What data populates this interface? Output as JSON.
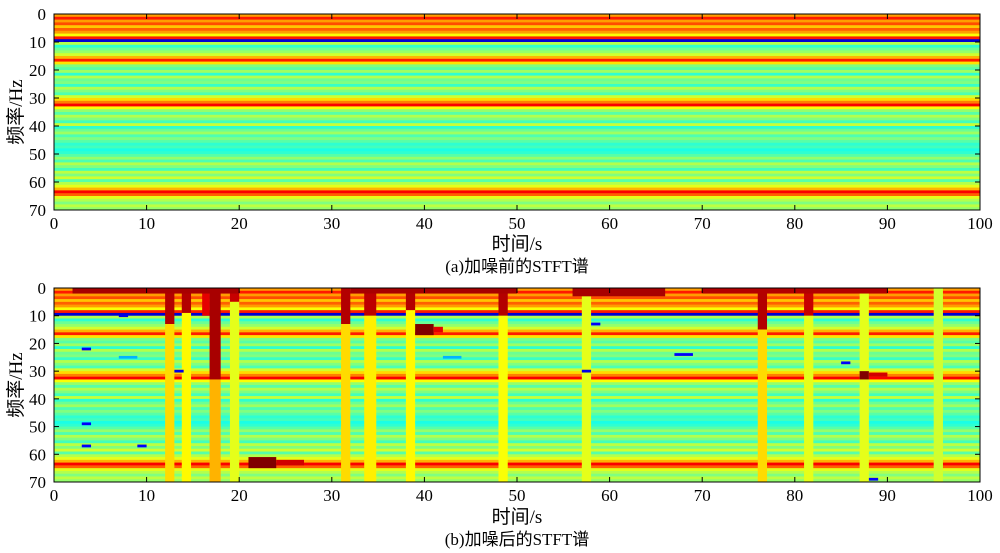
{
  "chart_data": [
    {
      "type": "heatmap",
      "caption": "(a)加噪前的STFT谱",
      "xlabel": "时间/s",
      "ylabel": "频率/Hz",
      "xlim": [
        0,
        100
      ],
      "ylim": [
        0,
        70
      ],
      "y_reversed": true,
      "xticks": [
        0,
        10,
        20,
        30,
        40,
        50,
        60,
        70,
        80,
        90,
        100
      ],
      "yticks": [
        0,
        10,
        20,
        30,
        40,
        50,
        60,
        70
      ],
      "colormap": "jet",
      "value_range": [
        0,
        1
      ],
      "grid": false,
      "row_profile": [
        {
          "f0": 0,
          "f1": 1,
          "v": 0.72
        },
        {
          "f0": 1,
          "f1": 2,
          "v": 0.85
        },
        {
          "f0": 2,
          "f1": 3,
          "v": 0.72
        },
        {
          "f0": 3,
          "f1": 4,
          "v": 0.8
        },
        {
          "f0": 4,
          "f1": 5,
          "v": 0.68
        },
        {
          "f0": 5,
          "f1": 6,
          "v": 0.78
        },
        {
          "f0": 6,
          "f1": 7,
          "v": 0.72
        },
        {
          "f0": 7,
          "f1": 8,
          "v": 0.62
        },
        {
          "f0": 8,
          "f1": 9,
          "v": 0.85
        },
        {
          "f0": 9,
          "f1": 10,
          "v": 0.08
        },
        {
          "f0": 10,
          "f1": 11,
          "v": 0.55
        },
        {
          "f0": 11,
          "f1": 12,
          "v": 0.42
        },
        {
          "f0": 12,
          "f1": 13,
          "v": 0.48
        },
        {
          "f0": 13,
          "f1": 14,
          "v": 0.52
        },
        {
          "f0": 14,
          "f1": 15,
          "v": 0.58
        },
        {
          "f0": 15,
          "f1": 16,
          "v": 0.7
        },
        {
          "f0": 16,
          "f1": 17,
          "v": 0.85
        },
        {
          "f0": 17,
          "f1": 18,
          "v": 0.65
        },
        {
          "f0": 18,
          "f1": 19,
          "v": 0.5
        },
        {
          "f0": 19,
          "f1": 20,
          "v": 0.46
        },
        {
          "f0": 20,
          "f1": 21,
          "v": 0.53
        },
        {
          "f0": 21,
          "f1": 22,
          "v": 0.42
        },
        {
          "f0": 22,
          "f1": 23,
          "v": 0.55
        },
        {
          "f0": 23,
          "f1": 24,
          "v": 0.48
        },
        {
          "f0": 24,
          "f1": 25,
          "v": 0.5
        },
        {
          "f0": 25,
          "f1": 26,
          "v": 0.43
        },
        {
          "f0": 26,
          "f1": 27,
          "v": 0.55
        },
        {
          "f0": 27,
          "f1": 28,
          "v": 0.5
        },
        {
          "f0": 28,
          "f1": 29,
          "v": 0.45
        },
        {
          "f0": 29,
          "f1": 30,
          "v": 0.58
        },
        {
          "f0": 30,
          "f1": 31,
          "v": 0.66
        },
        {
          "f0": 31,
          "f1": 32,
          "v": 0.75
        },
        {
          "f0": 32,
          "f1": 33,
          "v": 0.88
        },
        {
          "f0": 33,
          "f1": 34,
          "v": 0.62
        },
        {
          "f0": 34,
          "f1": 35,
          "v": 0.52
        },
        {
          "f0": 35,
          "f1": 36,
          "v": 0.46
        },
        {
          "f0": 36,
          "f1": 37,
          "v": 0.55
        },
        {
          "f0": 37,
          "f1": 38,
          "v": 0.5
        },
        {
          "f0": 38,
          "f1": 39,
          "v": 0.44
        },
        {
          "f0": 39,
          "f1": 40,
          "v": 0.57
        },
        {
          "f0": 40,
          "f1": 41,
          "v": 0.42
        },
        {
          "f0": 41,
          "f1": 42,
          "v": 0.48
        },
        {
          "f0": 42,
          "f1": 43,
          "v": 0.53
        },
        {
          "f0": 43,
          "f1": 44,
          "v": 0.45
        },
        {
          "f0": 44,
          "f1": 45,
          "v": 0.5
        },
        {
          "f0": 45,
          "f1": 46,
          "v": 0.46
        },
        {
          "f0": 46,
          "f1": 47,
          "v": 0.42
        },
        {
          "f0": 47,
          "f1": 48,
          "v": 0.44
        },
        {
          "f0": 48,
          "f1": 49,
          "v": 0.4
        },
        {
          "f0": 49,
          "f1": 50,
          "v": 0.42
        },
        {
          "f0": 50,
          "f1": 51,
          "v": 0.46
        },
        {
          "f0": 51,
          "f1": 52,
          "v": 0.52
        },
        {
          "f0": 52,
          "f1": 53,
          "v": 0.45
        },
        {
          "f0": 53,
          "f1": 54,
          "v": 0.55
        },
        {
          "f0": 54,
          "f1": 55,
          "v": 0.5
        },
        {
          "f0": 55,
          "f1": 56,
          "v": 0.44
        },
        {
          "f0": 56,
          "f1": 57,
          "v": 0.56
        },
        {
          "f0": 57,
          "f1": 58,
          "v": 0.5
        },
        {
          "f0": 58,
          "f1": 59,
          "v": 0.58
        },
        {
          "f0": 59,
          "f1": 60,
          "v": 0.46
        },
        {
          "f0": 60,
          "f1": 61,
          "v": 0.55
        },
        {
          "f0": 61,
          "f1": 62,
          "v": 0.6
        },
        {
          "f0": 62,
          "f1": 63,
          "v": 0.7
        },
        {
          "f0": 63,
          "f1": 64,
          "v": 0.88
        },
        {
          "f0": 64,
          "f1": 65,
          "v": 0.78
        },
        {
          "f0": 65,
          "f1": 66,
          "v": 0.6
        },
        {
          "f0": 66,
          "f1": 67,
          "v": 0.55
        },
        {
          "f0": 67,
          "f1": 68,
          "v": 0.5
        },
        {
          "f0": 68,
          "f1": 69,
          "v": 0.56
        },
        {
          "f0": 69,
          "f1": 70,
          "v": 0.52
        }
      ],
      "features": []
    },
    {
      "type": "heatmap",
      "caption": "(b)加噪后的STFT谱",
      "xlabel": "时间/s",
      "ylabel": "频率/Hz",
      "xlim": [
        0,
        100
      ],
      "ylim": [
        0,
        70
      ],
      "y_reversed": true,
      "xticks": [
        0,
        10,
        20,
        30,
        40,
        50,
        60,
        70,
        80,
        90,
        100
      ],
      "yticks": [
        0,
        10,
        20,
        30,
        40,
        50,
        60,
        70
      ],
      "colormap": "jet",
      "value_range": [
        0,
        1
      ],
      "grid": false,
      "row_profile": "same_as_panel_a",
      "features": [
        {
          "kind": "column",
          "t0": 12,
          "t1": 13,
          "f0": 0,
          "f1": 13,
          "v": 0.95
        },
        {
          "kind": "column",
          "t0": 12,
          "t1": 13,
          "f0": 13,
          "f1": 70,
          "v": 0.66
        },
        {
          "kind": "column",
          "t0": 13.8,
          "t1": 14.8,
          "f0": 0,
          "f1": 9,
          "v": 0.95
        },
        {
          "kind": "column",
          "t0": 13.8,
          "t1": 14.8,
          "f0": 9,
          "f1": 70,
          "v": 0.63
        },
        {
          "kind": "column",
          "t0": 16,
          "t1": 16.8,
          "f0": 0,
          "f1": 10,
          "v": 0.9
        },
        {
          "kind": "column",
          "t0": 16.8,
          "t1": 18,
          "f0": 0,
          "f1": 33,
          "v": 0.96
        },
        {
          "kind": "column",
          "t0": 16.8,
          "t1": 18,
          "f0": 33,
          "f1": 70,
          "v": 0.7
        },
        {
          "kind": "column",
          "t0": 19,
          "t1": 20,
          "f0": 0,
          "f1": 5,
          "v": 0.93
        },
        {
          "kind": "column",
          "t0": 19,
          "t1": 20,
          "f0": 5,
          "f1": 70,
          "v": 0.6
        },
        {
          "kind": "blob",
          "t0": 21,
          "t1": 24,
          "f0": 61,
          "f1": 65,
          "v": 1.0
        },
        {
          "kind": "blob",
          "t0": 24,
          "t1": 27,
          "f0": 62,
          "f1": 64,
          "v": 0.92
        },
        {
          "kind": "column",
          "t0": 31,
          "t1": 32,
          "f0": 0,
          "f1": 13,
          "v": 0.95
        },
        {
          "kind": "column",
          "t0": 31,
          "t1": 32,
          "f0": 13,
          "f1": 70,
          "v": 0.66
        },
        {
          "kind": "column",
          "t0": 33.5,
          "t1": 34.8,
          "f0": 0,
          "f1": 10,
          "v": 0.94
        },
        {
          "kind": "column",
          "t0": 33.5,
          "t1": 34.8,
          "f0": 10,
          "f1": 70,
          "v": 0.64
        },
        {
          "kind": "column",
          "t0": 38,
          "t1": 39,
          "f0": 0,
          "f1": 8,
          "v": 0.95
        },
        {
          "kind": "column",
          "t0": 38,
          "t1": 39,
          "f0": 8,
          "f1": 70,
          "v": 0.63
        },
        {
          "kind": "blob",
          "t0": 39,
          "t1": 41,
          "f0": 13,
          "f1": 17,
          "v": 1.0
        },
        {
          "kind": "blob",
          "t0": 41,
          "t1": 42,
          "f0": 14,
          "f1": 16,
          "v": 0.9
        },
        {
          "kind": "column",
          "t0": 48,
          "t1": 49,
          "f0": 0,
          "f1": 10,
          "v": 0.95
        },
        {
          "kind": "column",
          "t0": 48,
          "t1": 49,
          "f0": 10,
          "f1": 70,
          "v": 0.62
        },
        {
          "kind": "column",
          "t0": 57,
          "t1": 58,
          "f0": 0,
          "f1": 70,
          "v": 0.6
        },
        {
          "kind": "column",
          "t0": 76,
          "t1": 77,
          "f0": 0,
          "f1": 15,
          "v": 0.95
        },
        {
          "kind": "column",
          "t0": 76,
          "t1": 77,
          "f0": 15,
          "f1": 70,
          "v": 0.66
        },
        {
          "kind": "column",
          "t0": 81,
          "t1": 82,
          "f0": 0,
          "f1": 10,
          "v": 0.93
        },
        {
          "kind": "column",
          "t0": 81,
          "t1": 82,
          "f0": 10,
          "f1": 70,
          "v": 0.6
        },
        {
          "kind": "column",
          "t0": 87,
          "t1": 88,
          "f0": 0,
          "f1": 70,
          "v": 0.6
        },
        {
          "kind": "blob",
          "t0": 87,
          "t1": 88,
          "f0": 30,
          "f1": 33,
          "v": 1.0
        },
        {
          "kind": "blob",
          "t0": 88,
          "t1": 90,
          "f0": 30.5,
          "f1": 32,
          "v": 0.92
        },
        {
          "kind": "column",
          "t0": 95,
          "t1": 96,
          "f0": 0,
          "f1": 70,
          "v": 0.58
        },
        {
          "kind": "hbar",
          "t0": 2,
          "t1": 20,
          "f0": 0,
          "f1": 2,
          "v": 0.96
        },
        {
          "kind": "hbar",
          "t0": 32,
          "t1": 50,
          "f0": 0,
          "f1": 2,
          "v": 0.96
        },
        {
          "kind": "hbar",
          "t0": 56,
          "t1": 66,
          "f0": 0,
          "f1": 3,
          "v": 0.96
        },
        {
          "kind": "hbar",
          "t0": 70,
          "t1": 90,
          "f0": 0,
          "f1": 2,
          "v": 0.95
        },
        {
          "kind": "dash",
          "t0": 3,
          "t1": 4,
          "f0": 21.5,
          "f1": 22.5,
          "v": 0.12
        },
        {
          "kind": "dash",
          "t0": 7,
          "t1": 8,
          "f0": 9.5,
          "f1": 10.5,
          "v": 0.1
        },
        {
          "kind": "dash",
          "t0": 7,
          "t1": 9,
          "f0": 24.5,
          "f1": 25.5,
          "v": 0.3
        },
        {
          "kind": "dash",
          "t0": 3,
          "t1": 4,
          "f0": 48.5,
          "f1": 49.5,
          "v": 0.12
        },
        {
          "kind": "dash",
          "t0": 3,
          "t1": 4,
          "f0": 56.5,
          "f1": 57.5,
          "v": 0.12
        },
        {
          "kind": "dash",
          "t0": 9,
          "t1": 10,
          "f0": 56.5,
          "f1": 57.5,
          "v": 0.12
        },
        {
          "kind": "dash",
          "t0": 13,
          "t1": 14,
          "f0": 29.5,
          "f1": 30.5,
          "v": 0.1
        },
        {
          "kind": "dash",
          "t0": 58,
          "t1": 59,
          "f0": 12.5,
          "f1": 13.5,
          "v": 0.12
        },
        {
          "kind": "dash",
          "t0": 57,
          "t1": 58,
          "f0": 29.5,
          "f1": 30.5,
          "v": 0.1
        },
        {
          "kind": "dash",
          "t0": 67,
          "t1": 69,
          "f0": 23.5,
          "f1": 24.5,
          "v": 0.12
        },
        {
          "kind": "dash",
          "t0": 85,
          "t1": 86,
          "f0": 26.5,
          "f1": 27.5,
          "v": 0.12
        },
        {
          "kind": "dash",
          "t0": 42,
          "t1": 44,
          "f0": 24.5,
          "f1": 25.5,
          "v": 0.3
        },
        {
          "kind": "dash",
          "t0": 88,
          "t1": 89,
          "f0": 68.5,
          "f1": 69.5,
          "v": 0.12
        }
      ]
    }
  ]
}
